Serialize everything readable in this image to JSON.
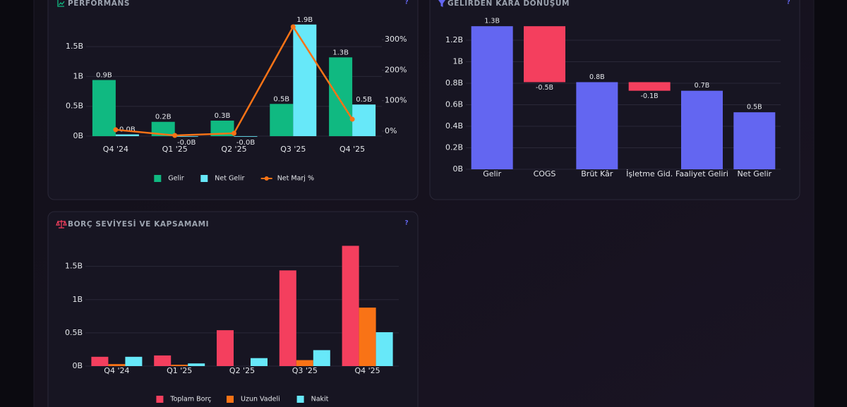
{
  "chart_data": [
    {
      "type": "bar",
      "title": "PERFORMANS",
      "help": "?",
      "categories": [
        "Q4 '24",
        "Q1 '25",
        "Q2 '25",
        "Q3 '25",
        "Q4 '25"
      ],
      "series": [
        {
          "name": "Gelir",
          "color": "#10b981",
          "values": [
            0.94,
            0.24,
            0.26,
            0.54,
            1.32
          ],
          "value_labels": [
            "0.9B",
            "0.2B",
            "0.3B",
            "0.5B",
            "1.3B"
          ]
        },
        {
          "name": "Net Gelir",
          "color": "#67e8f9",
          "values": [
            0.03,
            -0.01,
            -0.01,
            1.87,
            0.53
          ],
          "value_labels": [
            "0.0B",
            "-0.0B",
            "-0.0B",
            "1.9B",
            "0.5B"
          ]
        },
        {
          "name": "Net Marj %",
          "color": "#f97316",
          "type": "line",
          "axis": "y2",
          "values": [
            4.6,
            -14,
            -7,
            342,
            39
          ]
        }
      ],
      "ylim": [
        -0.1,
        1.95
      ],
      "yticks": [
        {
          "value": 0,
          "label": "0B"
        },
        {
          "value": 0.5,
          "label": "0.5B"
        },
        {
          "value": 1,
          "label": "1B"
        },
        {
          "value": 1.5,
          "label": "1.5B"
        }
      ],
      "y2lim": [
        -36,
        365
      ],
      "y2ticks": [
        {
          "value": 0,
          "label": "0%"
        },
        {
          "value": 100,
          "label": "100%"
        },
        {
          "value": 200,
          "label": "200%"
        },
        {
          "value": 300,
          "label": "300%"
        }
      ],
      "grid": true,
      "legend": "bottom"
    },
    {
      "type": "waterfall",
      "title": "GELİRDEN KÂRA DÖNÜŞÜM",
      "help": "?",
      "categories": [
        "Gelir",
        "COGS",
        "Brüt Kâr",
        "İşletme Gid.",
        "Faaliyet Geliri",
        "Net Gelir"
      ],
      "measure": [
        "absolute",
        "relative",
        "total",
        "relative",
        "total",
        "total"
      ],
      "values": [
        1.33,
        -0.52,
        0.81,
        -0.08,
        0.73,
        0.53
      ],
      "value_labels": [
        "1.3B",
        "-0.5B",
        "0.8B",
        "-0.1B",
        "0.7B",
        "0.5B"
      ],
      "color": "#6366f1",
      "negative_color": "#f43f5e",
      "ylim": [
        0,
        1.39
      ],
      "yticks": [
        {
          "value": 0,
          "label": "0B"
        },
        {
          "value": 0.2,
          "label": "0.2B"
        },
        {
          "value": 0.4,
          "label": "0.4B"
        },
        {
          "value": 0.6,
          "label": "0.6B"
        },
        {
          "value": 0.8,
          "label": "0.8B"
        },
        {
          "value": 1,
          "label": "1B"
        },
        {
          "value": 1.2,
          "label": "1.2B"
        }
      ],
      "grid": true
    },
    {
      "type": "bar",
      "title": "BORÇ SEVİYESİ VE KAPSAMAMI",
      "help": "?",
      "categories": [
        "Q4 '24",
        "Q1 '25",
        "Q2 '25",
        "Q3 '25",
        "Q4 '25"
      ],
      "series": [
        {
          "name": "Toplam Borç",
          "color": "#f43f5e",
          "values": [
            0.14,
            0.16,
            0.54,
            1.44,
            1.81
          ]
        },
        {
          "name": "Uzun Vadeli",
          "color": "#f97316",
          "values": [
            0.03,
            0.02,
            0,
            0.09,
            0.88
          ]
        },
        {
          "name": "Nakit",
          "color": "#67e8f9",
          "values": [
            0.14,
            0.04,
            0.12,
            0.24,
            0.51
          ]
        }
      ],
      "ylim": [
        0,
        1.9
      ],
      "yticks": [
        {
          "value": 0,
          "label": "0B"
        },
        {
          "value": 0.5,
          "label": "0.5B"
        },
        {
          "value": 1,
          "label": "1B"
        },
        {
          "value": 1.5,
          "label": "1.5B"
        }
      ],
      "grid": true,
      "legend": "bottom"
    }
  ]
}
